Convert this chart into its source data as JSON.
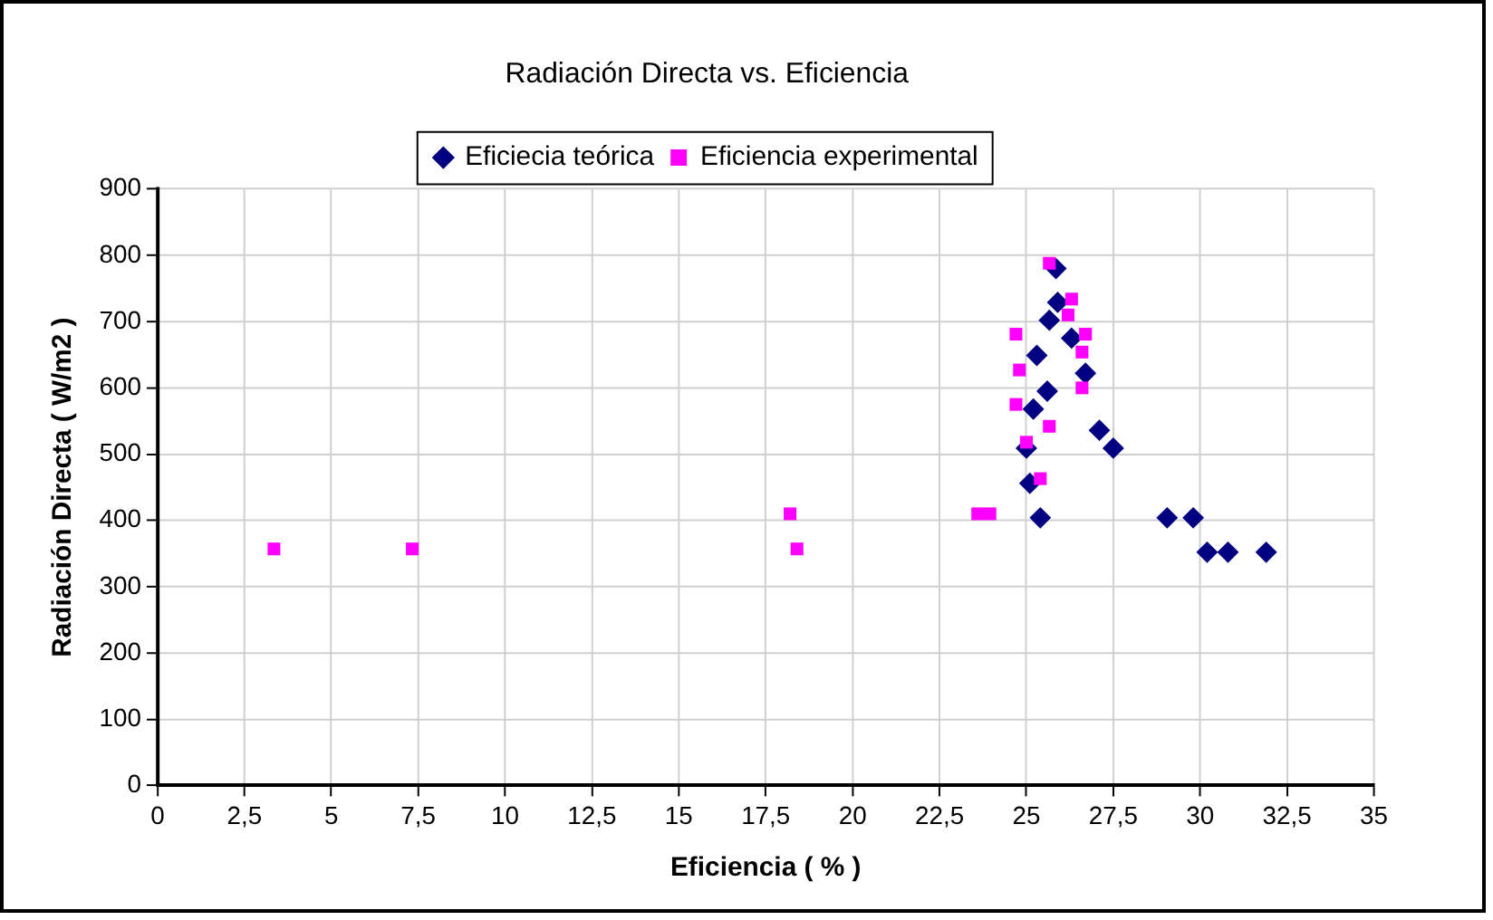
{
  "chart_data": {
    "type": "scatter",
    "title": "Radiación Directa vs. Eficiencia",
    "xlabel": "Eficiencia ( % )",
    "ylabel": "Radiación Directa ( W/m2 )",
    "xlim": [
      0,
      35
    ],
    "xticks": [
      0,
      {
        "value": 2.5,
        "label": "2,5"
      },
      5,
      {
        "value": 7.5,
        "label": "7,5"
      },
      10,
      {
        "value": 12.5,
        "label": "12,5"
      },
      15,
      {
        "value": 17.5,
        "label": "17,5"
      },
      20,
      {
        "value": 22.5,
        "label": "22,5"
      },
      25,
      {
        "value": 27.5,
        "label": "27,5"
      },
      30,
      {
        "value": 32.5,
        "label": "32,5"
      },
      35
    ],
    "ylim": [
      0,
      900
    ],
    "yticks": [
      0,
      100,
      200,
      300,
      400,
      500,
      600,
      700,
      800,
      900
    ],
    "grid": true,
    "legend": "top",
    "series": [
      {
        "name": "Eficiecia teórica",
        "color": "#000080",
        "marker": "diamond",
        "x": [
          25.85,
          25.9,
          25.66,
          26.3,
          26.7,
          25.3,
          25.6,
          25.2,
          25.0,
          25.1,
          25.4,
          27.1,
          27.5,
          29.05,
          29.8,
          30.2,
          30.8,
          31.9
        ],
        "values": [
          780,
          729,
          702,
          675,
          622,
          649,
          595,
          568,
          509,
          456,
          404,
          536,
          509,
          404,
          404,
          352,
          352,
          352
        ]
      },
      {
        "name": "Eficiencia experimental",
        "color": "#ff00ff",
        "marker": "square",
        "x": [
          25.66,
          26.3,
          26.2,
          24.7,
          26.7,
          26.6,
          24.8,
          26.6,
          24.7,
          25.66,
          25.0,
          25.4,
          23.6,
          23.95,
          3.35,
          7.33,
          18.2,
          18.4
        ],
        "values": [
          788,
          734,
          710,
          681,
          681,
          654,
          627,
          600,
          575,
          542,
          518,
          463,
          410,
          410,
          357,
          357,
          410,
          357
        ]
      }
    ]
  }
}
